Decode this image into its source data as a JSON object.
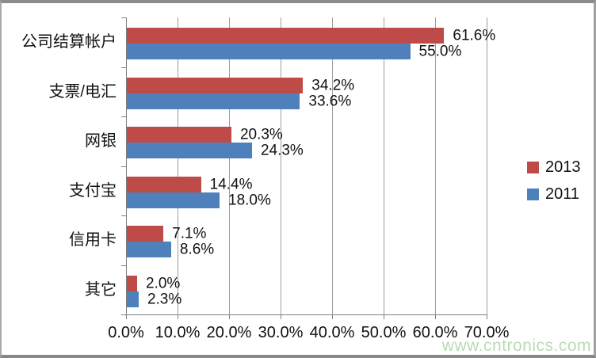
{
  "chart_data": {
    "type": "bar",
    "orientation": "horizontal",
    "categories": [
      "公司结算帐户",
      "支票/电汇",
      "网银",
      "支付宝",
      "信用卡",
      "其它"
    ],
    "series": [
      {
        "name": "2013",
        "color": "#BE4B48",
        "values": [
          61.6,
          34.2,
          20.3,
          14.4,
          7.1,
          2.0
        ],
        "labels": [
          "61.6%",
          "34.2%",
          "20.3%",
          "14.4%",
          "7.1%",
          "2.0%"
        ]
      },
      {
        "name": "2011",
        "color": "#4E80BC",
        "values": [
          55.0,
          33.6,
          24.3,
          18.0,
          8.6,
          2.3
        ],
        "labels": [
          "55.0%",
          "33.6%",
          "24.3%",
          "18.0%",
          "8.6%",
          "2.3%"
        ]
      }
    ],
    "xlim": [
      0,
      70
    ],
    "x_ticks": [
      "0.0%",
      "10.0%",
      "20.0%",
      "30.0%",
      "40.0%",
      "50.0%",
      "60.0%",
      "70.0%"
    ],
    "grid": true,
    "legend_position": "right"
  },
  "watermark": {
    "text": "www.cntronics.com",
    "color": "#b9dcb4"
  }
}
